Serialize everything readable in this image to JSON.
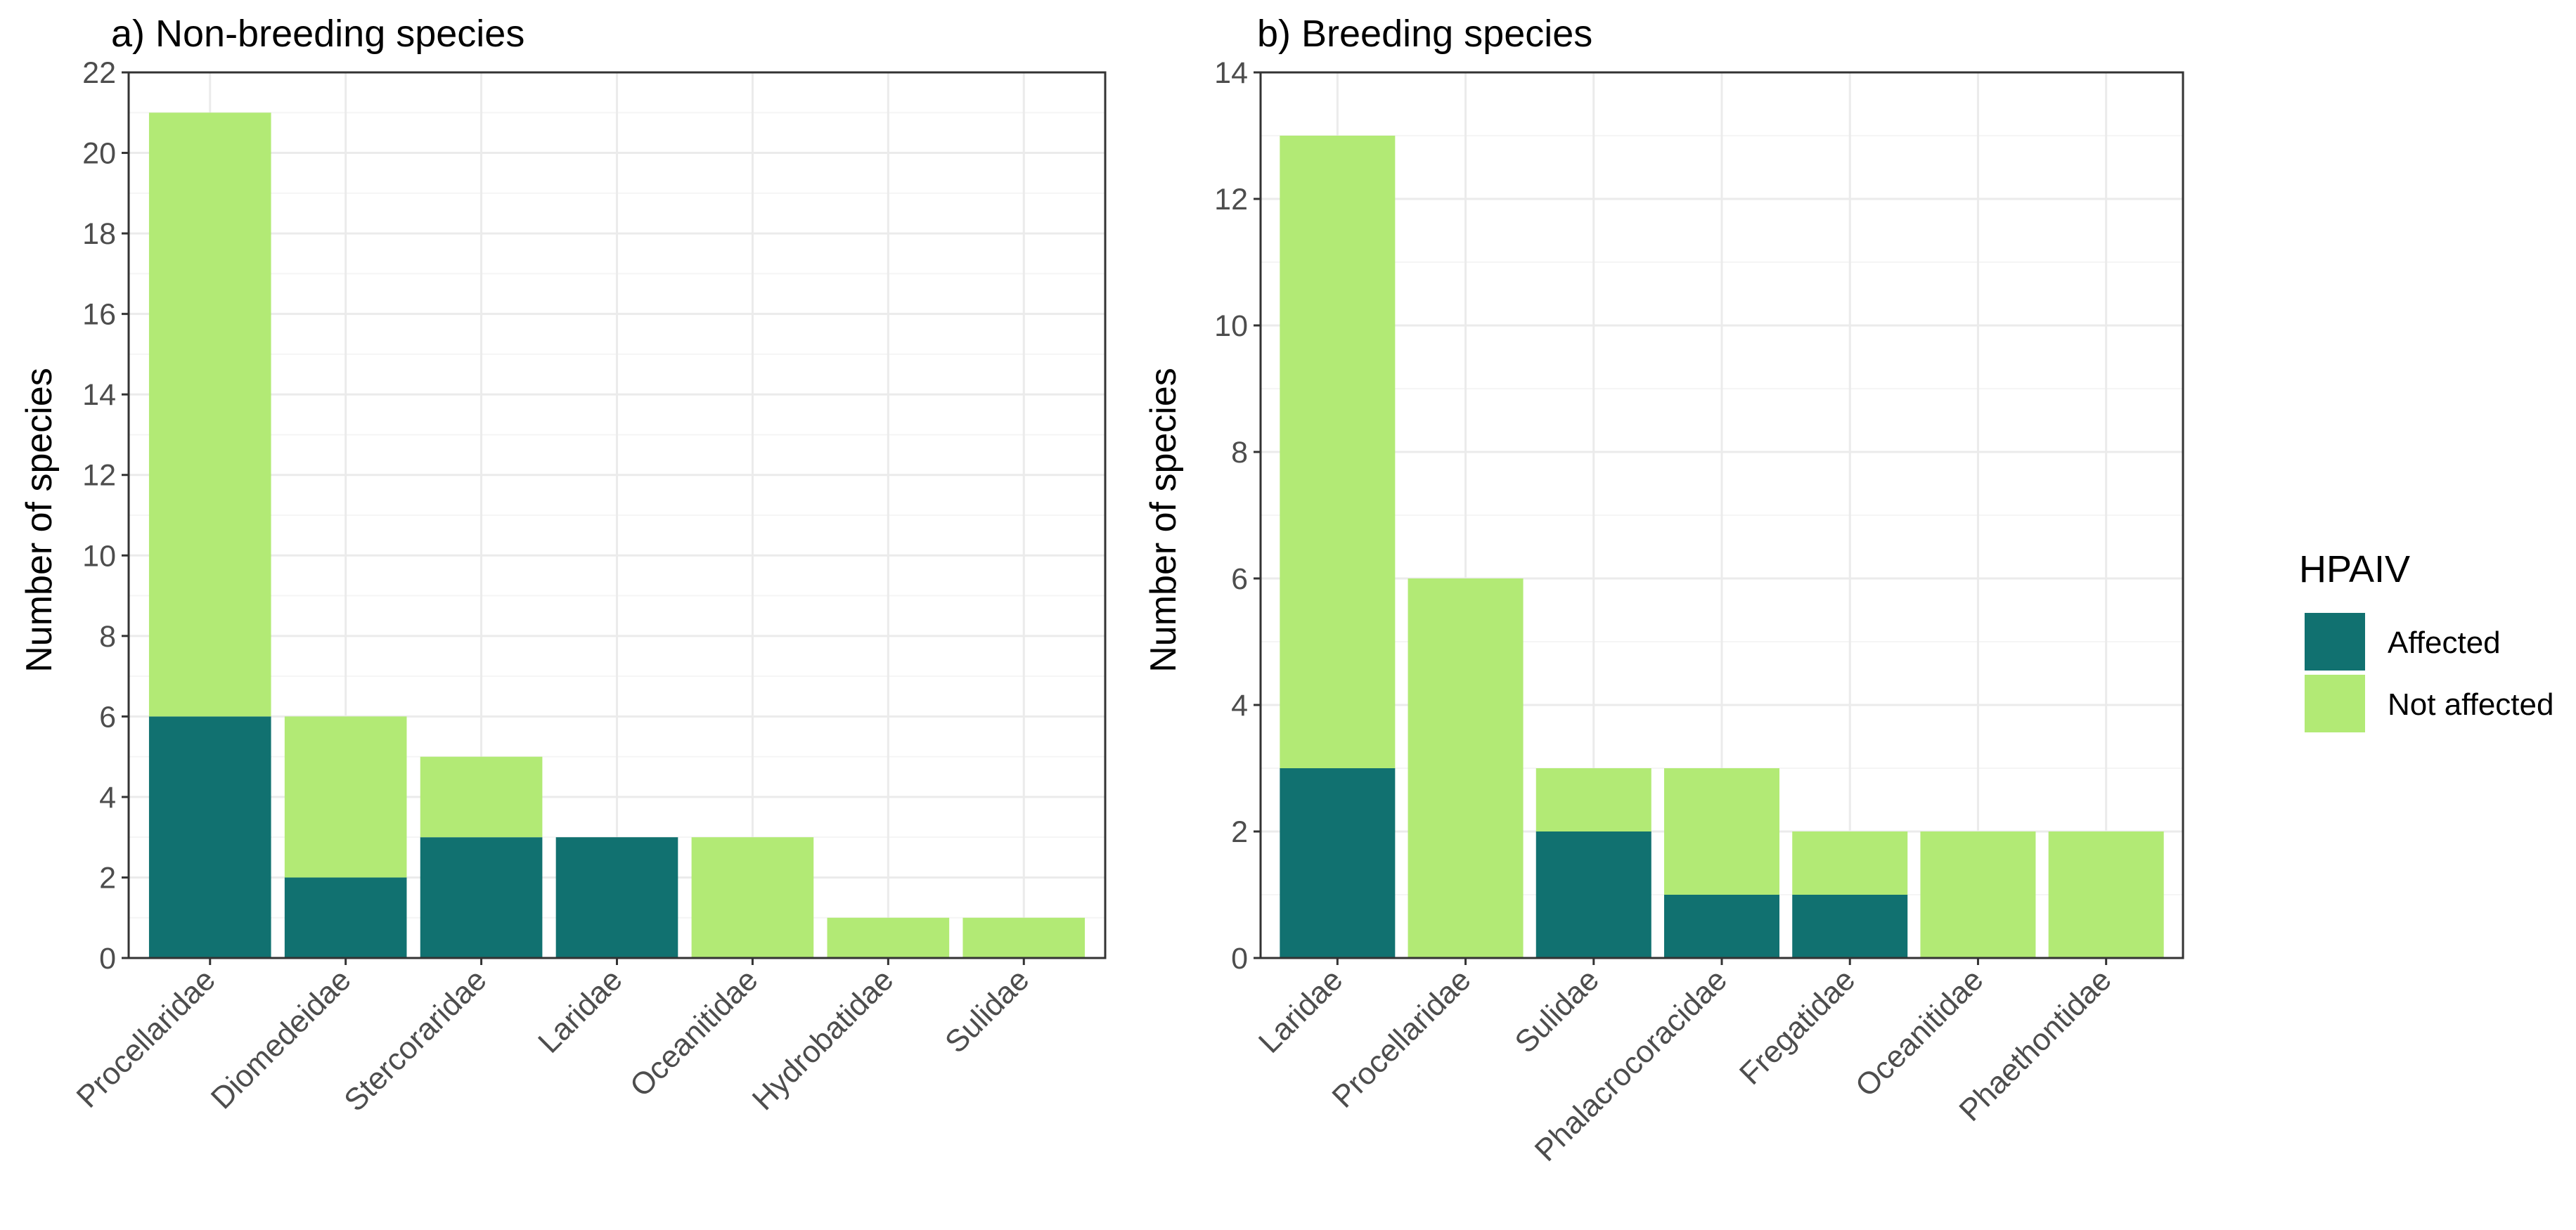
{
  "legend": {
    "title": "HPAIV",
    "items": [
      {
        "label": "Affected",
        "color": "#117170"
      },
      {
        "label": "Not affected",
        "color": "#b2ea75"
      }
    ]
  },
  "colors": {
    "affected": "#117170",
    "not_affected": "#b2ea75",
    "grid_major": "#ebebeb",
    "grid_minor": "#f5f5f5",
    "panel_border": "#333333",
    "axis_text": "#4d4d4d"
  },
  "chart_data": [
    {
      "type": "bar",
      "stacked": true,
      "title": "a) Non-breeding species",
      "xlabel": "",
      "ylabel": "Number of species",
      "ylim": [
        0,
        22
      ],
      "yticks": [
        0,
        2,
        4,
        6,
        8,
        10,
        12,
        14,
        16,
        18,
        20,
        22
      ],
      "grid": true,
      "legend_position": "right",
      "categories": [
        "Procellaridae",
        "Diomedeidae",
        "Stercoraridae",
        "Laridae",
        "Oceanitidae",
        "Hydrobatidae",
        "Sulidae"
      ],
      "series": [
        {
          "name": "Affected",
          "values": [
            6,
            2,
            3,
            3,
            0,
            0,
            0
          ]
        },
        {
          "name": "Not affected",
          "values": [
            15,
            4,
            2,
            0,
            3,
            1,
            1
          ]
        }
      ]
    },
    {
      "type": "bar",
      "stacked": true,
      "title": "b) Breeding species",
      "xlabel": "",
      "ylabel": "Number of species",
      "ylim": [
        0,
        14
      ],
      "yticks": [
        0,
        2,
        4,
        6,
        8,
        10,
        12,
        14
      ],
      "grid": true,
      "legend_position": "right",
      "categories": [
        "Laridae",
        "Procellaridae",
        "Sulidae",
        "Phalacrocoracidae",
        "Fregatidae",
        "Oceanitidae",
        "Phaethontidae"
      ],
      "series": [
        {
          "name": "Affected",
          "values": [
            3,
            0,
            2,
            1,
            1,
            0,
            0
          ]
        },
        {
          "name": "Not affected",
          "values": [
            10,
            6,
            1,
            2,
            1,
            2,
            2
          ]
        }
      ]
    }
  ]
}
